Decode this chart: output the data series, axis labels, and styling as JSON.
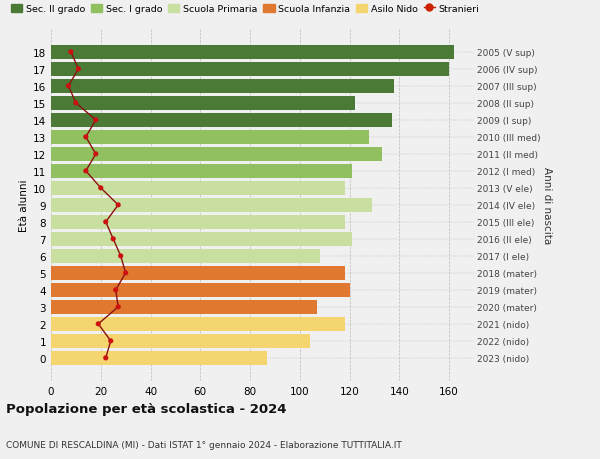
{
  "ages": [
    0,
    1,
    2,
    3,
    4,
    5,
    6,
    7,
    8,
    9,
    10,
    11,
    12,
    13,
    14,
    15,
    16,
    17,
    18
  ],
  "bar_values": [
    87,
    104,
    118,
    107,
    120,
    118,
    108,
    121,
    118,
    129,
    118,
    121,
    133,
    128,
    137,
    122,
    138,
    160,
    162
  ],
  "stranieri": [
    22,
    24,
    19,
    27,
    26,
    30,
    28,
    25,
    22,
    27,
    20,
    14,
    18,
    14,
    18,
    10,
    7,
    11,
    8
  ],
  "right_labels": [
    "2023 (nido)",
    "2022 (nido)",
    "2021 (nido)",
    "2020 (mater)",
    "2019 (mater)",
    "2018 (mater)",
    "2017 (I ele)",
    "2016 (II ele)",
    "2015 (III ele)",
    "2014 (IV ele)",
    "2013 (V ele)",
    "2012 (I med)",
    "2011 (II med)",
    "2010 (III med)",
    "2009 (I sup)",
    "2008 (II sup)",
    "2007 (III sup)",
    "2006 (IV sup)",
    "2005 (V sup)"
  ],
  "bar_colors": [
    "#f5d570",
    "#f5d570",
    "#f5d570",
    "#e07830",
    "#e07830",
    "#e07830",
    "#c8dfa0",
    "#c8dfa0",
    "#c8dfa0",
    "#c8dfa0",
    "#c8dfa0",
    "#90c060",
    "#90c060",
    "#90c060",
    "#4a7a35",
    "#4a7a35",
    "#4a7a35",
    "#4a7a35",
    "#4a7a35"
  ],
  "legend_labels": [
    "Sec. II grado",
    "Sec. I grado",
    "Scuola Primaria",
    "Scuola Infanzia",
    "Asilo Nido",
    "Stranieri"
  ],
  "legend_colors": [
    "#4a7a35",
    "#90c060",
    "#c8dfa0",
    "#e07830",
    "#f5d570",
    "#cc2200"
  ],
  "ylabel": "Età alunni",
  "ylabel_right": "Anni di nascita",
  "title": "Popolazione per età scolastica - 2024",
  "subtitle": "COMUNE DI RESCALDINA (MI) - Dati ISTAT 1° gennaio 2024 - Elaborazione TUTTITALIA.IT",
  "xlim": [
    0,
    170
  ],
  "xticks": [
    0,
    20,
    40,
    60,
    80,
    100,
    120,
    140,
    160
  ],
  "background_color": "#f0f0f0",
  "line_color": "#8b1010",
  "dot_color": "#cc1010",
  "bar_height": 0.82
}
